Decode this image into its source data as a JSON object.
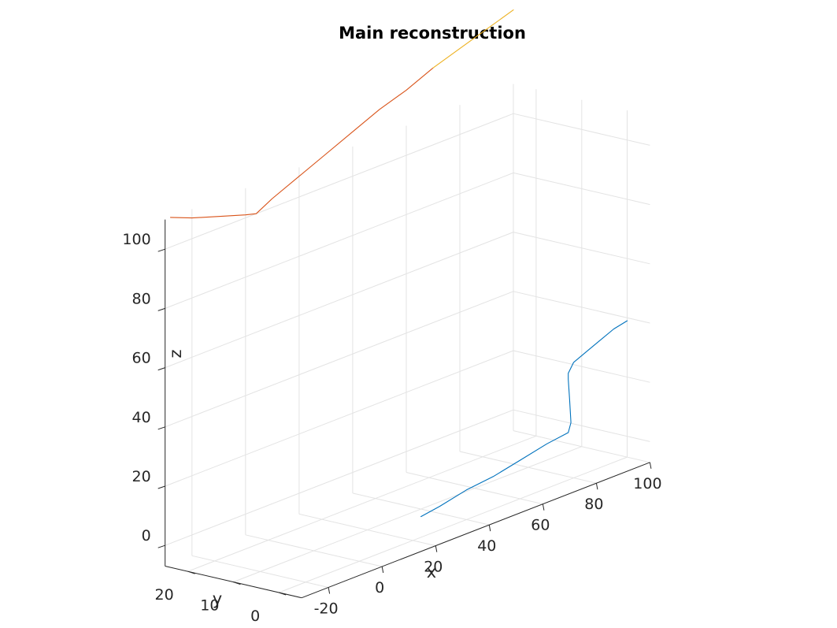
{
  "chart_data": {
    "type": "line",
    "projection": "3d",
    "title": "Main reconstruction",
    "xlabel": "x",
    "ylabel": "y",
    "zlabel": "z",
    "xlim": [
      -30,
      100
    ],
    "ylim": [
      -5,
      25
    ],
    "zlim": [
      -7,
      110
    ],
    "x_ticks": [
      "-20",
      "0",
      "20",
      "40",
      "60",
      "80",
      "100"
    ],
    "y_ticks": [
      "0",
      "10",
      "20"
    ],
    "z_ticks": [
      "0",
      "20",
      "40",
      "60",
      "80",
      "100"
    ],
    "x_tick_values": [
      -20,
      0,
      20,
      40,
      60,
      80,
      100
    ],
    "y_tick_values": [
      0,
      10,
      20
    ],
    "z_tick_values": [
      0,
      20,
      40,
      60,
      80,
      100
    ],
    "grid": true,
    "series": [
      {
        "color": "#0072BD",
        "points": [
          [
            23,
            0,
            0
          ],
          [
            30,
            0,
            1
          ],
          [
            40,
            0,
            3
          ],
          [
            50,
            0,
            4
          ],
          [
            60,
            0,
            6
          ],
          [
            70,
            0,
            8
          ],
          [
            78,
            0,
            9
          ],
          [
            79,
            0,
            12
          ],
          [
            78.5,
            0,
            20
          ],
          [
            78,
            0,
            27
          ],
          [
            78,
            0,
            29
          ],
          [
            80,
            0,
            32
          ],
          [
            85,
            0,
            34
          ],
          [
            90,
            0,
            36
          ],
          [
            95,
            0,
            38
          ],
          [
            100,
            0,
            39
          ]
        ]
      },
      {
        "color": "#D95319",
        "points": [
          [
            -28,
            25,
            110
          ],
          [
            -20,
            25,
            107
          ],
          [
            -10,
            25,
            104
          ],
          [
            0,
            25,
            101
          ],
          [
            4,
            25,
            100
          ],
          [
            10,
            25,
            103
          ],
          [
            20,
            25,
            107
          ],
          [
            30,
            25,
            111
          ],
          [
            40,
            25,
            115
          ],
          [
            50,
            25,
            119
          ],
          [
            60,
            25,
            122
          ],
          [
            70,
            25,
            126
          ]
        ]
      },
      {
        "color": "#EDB120",
        "points": [
          [
            70,
            25,
            126
          ],
          [
            80,
            25,
            129
          ],
          [
            90,
            25,
            132
          ],
          [
            100,
            25,
            135
          ]
        ]
      }
    ]
  }
}
